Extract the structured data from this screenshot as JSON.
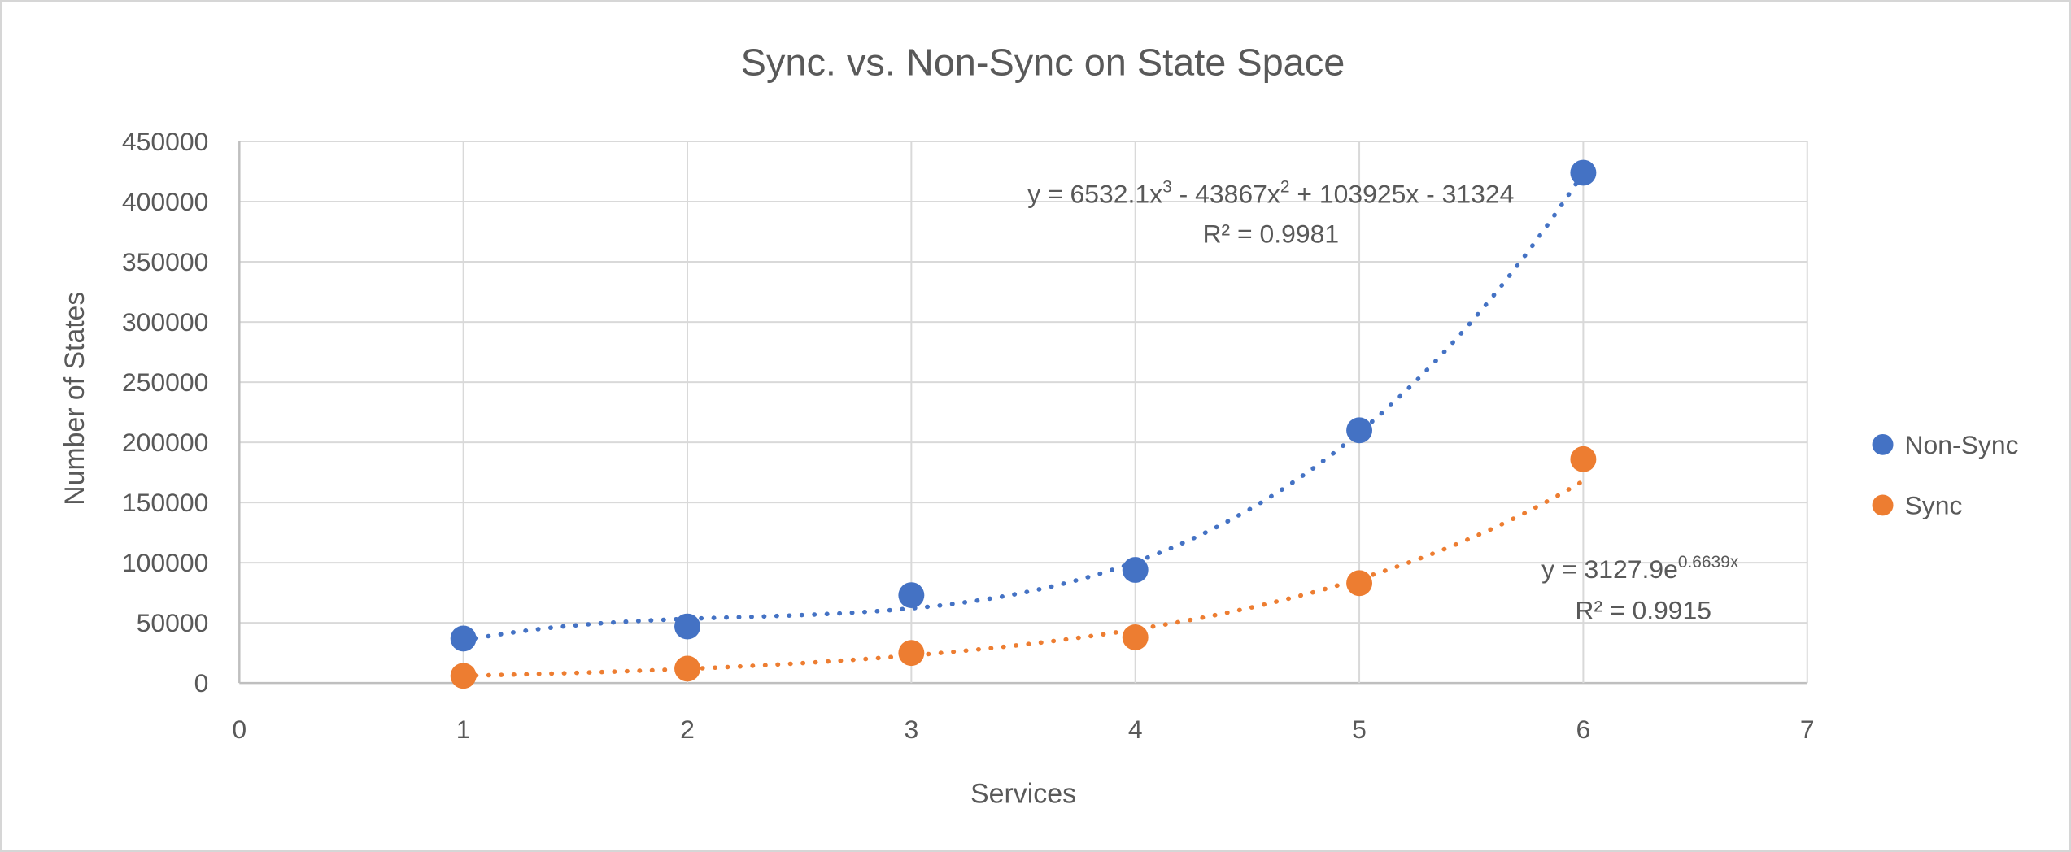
{
  "chart_data": {
    "type": "scatter",
    "title": "Sync. vs. Non-Sync on State Space",
    "xlabel": "Services",
    "ylabel": "Number of States",
    "x": [
      1,
      2,
      3,
      4,
      5,
      6
    ],
    "series": [
      {
        "name": "Non-Sync",
        "color": "#4472C4",
        "values": [
          37000,
          47000,
          73000,
          94000,
          210000,
          424000
        ],
        "trendline": {
          "type": "polynomial",
          "coefficients": [
            6532.1,
            -43867,
            103925,
            -31324
          ],
          "equation": "y = 6532.1x³ - 43867x² + 103925x - 31324",
          "r2": "R² = 0.9981"
        }
      },
      {
        "name": "Sync",
        "color": "#ED7D31",
        "values": [
          6000,
          12000,
          25000,
          38000,
          83000,
          186000
        ],
        "trendline": {
          "type": "exponential",
          "a": 3127.9,
          "b": 0.6639,
          "equation": "y = 3127.9e^(0.6639x)",
          "r2": "R² = 0.9915"
        }
      }
    ],
    "xlim": [
      0,
      7
    ],
    "ylim": [
      0,
      450000
    ],
    "x_ticks": [
      "0",
      "1",
      "2",
      "3",
      "4",
      "5",
      "6",
      "7"
    ],
    "y_ticks": [
      "0",
      "50000",
      "100000",
      "150000",
      "200000",
      "250000",
      "300000",
      "350000",
      "400000",
      "450000"
    ],
    "grid": true,
    "legend_position": "right",
    "trendline_style": "dotted"
  },
  "equations": {
    "nonsync": {
      "pre": "y = 6532.1x",
      "sup1": "3",
      "mid": " - 43867x",
      "sup2": "2",
      "post": " + 103925x - 31324",
      "r2": "R² = 0.9981"
    },
    "sync": {
      "pre": "y = 3127.9e",
      "sup": "0.6639x",
      "r2": "R² = 0.9915"
    }
  },
  "legend": {
    "items": [
      {
        "label": "Non-Sync",
        "color": "#4472C4"
      },
      {
        "label": "Sync",
        "color": "#ED7D31"
      }
    ]
  },
  "colors": {
    "nonsync": "#4472C4",
    "sync": "#ED7D31",
    "gridline": "#D9D9D9",
    "axis_line": "#BFBFBF",
    "text": "#595959",
    "frame_border": "#D6D6D6"
  }
}
